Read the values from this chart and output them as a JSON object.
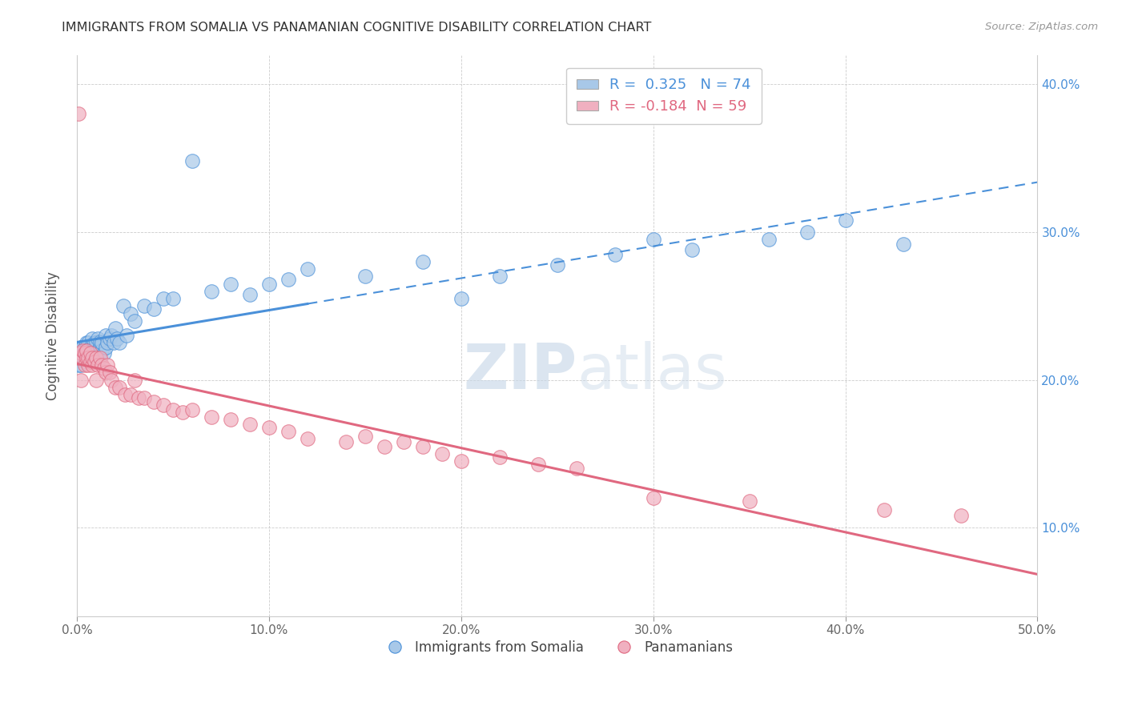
{
  "title": "IMMIGRANTS FROM SOMALIA VS PANAMANIAN COGNITIVE DISABILITY CORRELATION CHART",
  "source": "Source: ZipAtlas.com",
  "ylabel": "Cognitive Disability",
  "xlabel": "",
  "xlim": [
    0.0,
    0.5
  ],
  "ylim": [
    0.04,
    0.42
  ],
  "xticks": [
    0.0,
    0.1,
    0.2,
    0.3,
    0.4,
    0.5
  ],
  "xtick_labels": [
    "0.0%",
    "10.0%",
    "20.0%",
    "30.0%",
    "40.0%",
    "50.0%"
  ],
  "yticks": [
    0.1,
    0.2,
    0.3,
    0.4
  ],
  "ytick_labels": [
    "10.0%",
    "20.0%",
    "30.0%",
    "40.0%"
  ],
  "blue_R": 0.325,
  "blue_N": 74,
  "pink_R": -0.184,
  "pink_N": 59,
  "blue_color": "#a8c8e8",
  "pink_color": "#f0b0c0",
  "blue_line_color": "#4a90d9",
  "pink_line_color": "#e06880",
  "blue_line_solid_end": 0.12,
  "legend_label_blue": "Immigrants from Somalia",
  "legend_label_pink": "Panamanians",
  "watermark_zip": "ZIP",
  "watermark_atlas": "atlas",
  "blue_scatter_x": [
    0.001,
    0.001,
    0.001,
    0.002,
    0.002,
    0.002,
    0.002,
    0.003,
    0.003,
    0.003,
    0.004,
    0.004,
    0.004,
    0.005,
    0.005,
    0.005,
    0.005,
    0.006,
    0.006,
    0.006,
    0.007,
    0.007,
    0.007,
    0.008,
    0.008,
    0.008,
    0.009,
    0.009,
    0.01,
    0.01,
    0.01,
    0.011,
    0.011,
    0.012,
    0.012,
    0.013,
    0.013,
    0.014,
    0.015,
    0.015,
    0.016,
    0.017,
    0.018,
    0.019,
    0.02,
    0.021,
    0.022,
    0.024,
    0.026,
    0.028,
    0.03,
    0.035,
    0.04,
    0.045,
    0.05,
    0.06,
    0.07,
    0.08,
    0.09,
    0.1,
    0.11,
    0.12,
    0.15,
    0.18,
    0.2,
    0.22,
    0.25,
    0.28,
    0.3,
    0.32,
    0.36,
    0.38,
    0.4,
    0.43
  ],
  "blue_scatter_y": [
    0.21,
    0.215,
    0.22,
    0.21,
    0.215,
    0.218,
    0.222,
    0.215,
    0.218,
    0.222,
    0.213,
    0.218,
    0.222,
    0.215,
    0.218,
    0.22,
    0.225,
    0.215,
    0.22,
    0.225,
    0.218,
    0.22,
    0.222,
    0.218,
    0.22,
    0.228,
    0.22,
    0.225,
    0.222,
    0.218,
    0.225,
    0.22,
    0.228,
    0.222,
    0.226,
    0.22,
    0.225,
    0.218,
    0.222,
    0.23,
    0.225,
    0.228,
    0.23,
    0.225,
    0.235,
    0.228,
    0.225,
    0.25,
    0.23,
    0.245,
    0.24,
    0.25,
    0.248,
    0.255,
    0.255,
    0.348,
    0.26,
    0.265,
    0.258,
    0.265,
    0.268,
    0.275,
    0.27,
    0.28,
    0.255,
    0.27,
    0.278,
    0.285,
    0.295,
    0.288,
    0.295,
    0.3,
    0.308,
    0.292
  ],
  "pink_scatter_x": [
    0.001,
    0.001,
    0.002,
    0.002,
    0.003,
    0.003,
    0.004,
    0.004,
    0.005,
    0.005,
    0.006,
    0.006,
    0.007,
    0.007,
    0.008,
    0.008,
    0.009,
    0.01,
    0.01,
    0.011,
    0.012,
    0.013,
    0.014,
    0.015,
    0.016,
    0.017,
    0.018,
    0.02,
    0.022,
    0.025,
    0.028,
    0.03,
    0.032,
    0.035,
    0.04,
    0.045,
    0.05,
    0.055,
    0.06,
    0.07,
    0.08,
    0.09,
    0.1,
    0.11,
    0.12,
    0.14,
    0.15,
    0.16,
    0.17,
    0.18,
    0.19,
    0.2,
    0.22,
    0.24,
    0.26,
    0.3,
    0.35,
    0.42,
    0.46
  ],
  "pink_scatter_y": [
    0.38,
    0.215,
    0.2,
    0.218,
    0.215,
    0.22,
    0.21,
    0.218,
    0.215,
    0.22,
    0.21,
    0.215,
    0.212,
    0.218,
    0.21,
    0.215,
    0.212,
    0.2,
    0.215,
    0.21,
    0.215,
    0.21,
    0.208,
    0.205,
    0.21,
    0.205,
    0.2,
    0.195,
    0.195,
    0.19,
    0.19,
    0.2,
    0.188,
    0.188,
    0.185,
    0.183,
    0.18,
    0.178,
    0.18,
    0.175,
    0.173,
    0.17,
    0.168,
    0.165,
    0.16,
    0.158,
    0.162,
    0.155,
    0.158,
    0.155,
    0.15,
    0.145,
    0.148,
    0.143,
    0.14,
    0.12,
    0.118,
    0.112,
    0.108
  ]
}
